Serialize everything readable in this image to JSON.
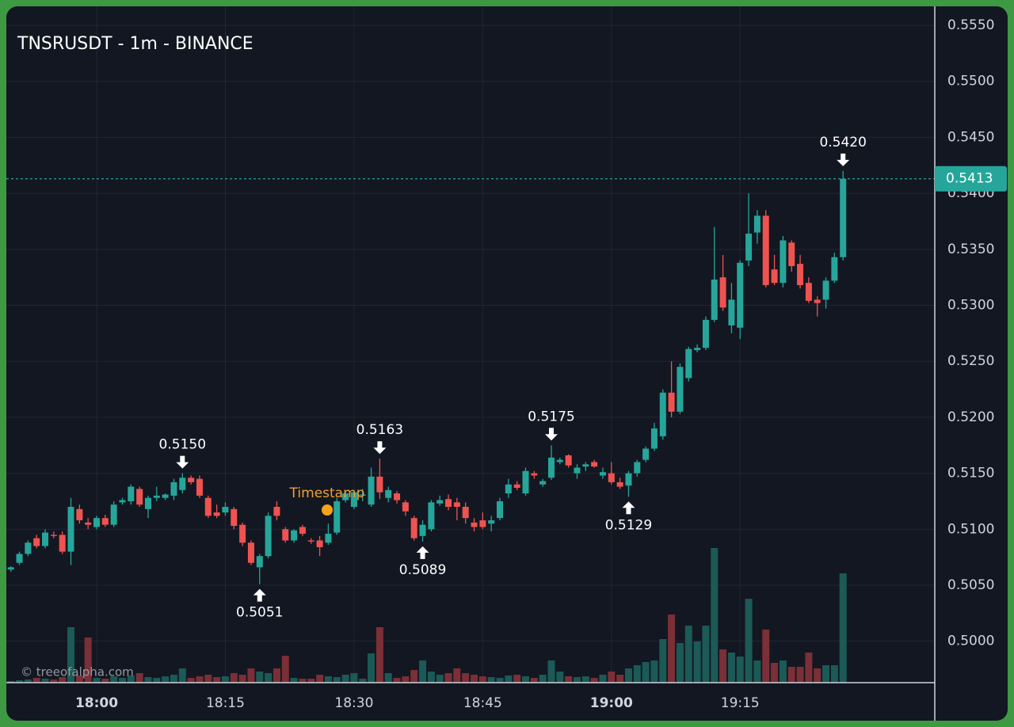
{
  "chart_data": {
    "type": "candlestick",
    "title": "TNSRUSDT - 1m - BINANCE",
    "watermark": "© treeofalpha.com",
    "event_label": "Timestamp",
    "categories": [
      null,
      null,
      null,
      null,
      null,
      null,
      null,
      null,
      null,
      null,
      "18:00",
      null,
      null,
      null,
      null,
      null,
      null,
      null,
      null,
      null,
      null,
      null,
      null,
      null,
      null,
      "18:15",
      null,
      null,
      null,
      null,
      null,
      null,
      null,
      null,
      null,
      null,
      null,
      null,
      null,
      null,
      "18:30",
      null,
      null,
      null,
      null,
      null,
      null,
      null,
      null,
      null,
      null,
      null,
      null,
      null,
      null,
      "18:45",
      null,
      null,
      null,
      null,
      null,
      null,
      null,
      null,
      null,
      null,
      null,
      null,
      null,
      null,
      "19:00",
      null,
      null,
      null,
      null,
      null,
      null,
      null,
      null,
      null,
      null,
      null,
      null,
      null,
      null,
      "19:15",
      null,
      null,
      null,
      null,
      null,
      null,
      null,
      null,
      null,
      null,
      null,
      null
    ],
    "open": [
      0.5064,
      0.507,
      0.5078,
      0.5092,
      0.5085,
      0.5095,
      0.5095,
      0.508,
      0.5118,
      0.5106,
      0.5102,
      0.511,
      0.5104,
      0.5124,
      0.5125,
      0.5136,
      0.5118,
      0.5128,
      0.5128,
      0.513,
      0.5135,
      0.5146,
      0.5145,
      0.5128,
      0.5115,
      0.5115,
      0.5118,
      0.5104,
      0.5088,
      0.5066,
      0.5076,
      0.512,
      0.51,
      0.509,
      0.5102,
      0.509,
      0.509,
      0.5088,
      0.5097,
      0.5126,
      0.512,
      0.513,
      0.5122,
      0.5147,
      0.5128,
      0.5132,
      0.5124,
      0.511,
      0.5094,
      0.51,
      0.5123,
      0.5127,
      0.5124,
      0.512,
      0.5106,
      0.5108,
      0.5105,
      0.511,
      0.5132,
      0.514,
      0.5132,
      0.515,
      0.514,
      0.5146,
      0.516,
      0.5166,
      0.515,
      0.5156,
      0.516,
      0.5148,
      0.515,
      0.5142,
      0.5139,
      0.515,
      0.5162,
      0.5172,
      0.5183,
      0.5222,
      0.5205,
      0.5235,
      0.526,
      0.5262,
      0.5287,
      0.5325,
      0.5282,
      0.528,
      0.534,
      0.5365,
      0.538,
      0.5332,
      0.532,
      0.5356,
      0.5337,
      0.532,
      0.5305,
      0.5305,
      0.5322,
      0.5343
    ],
    "high": [
      0.5067,
      0.508,
      0.509,
      0.5095,
      0.51,
      0.5098,
      0.5098,
      0.5128,
      0.5122,
      0.511,
      0.5112,
      0.5113,
      0.5125,
      0.5128,
      0.514,
      0.5138,
      0.513,
      0.5138,
      0.5132,
      0.5145,
      0.515,
      0.5148,
      0.5148,
      0.513,
      0.5122,
      0.5124,
      0.512,
      0.5106,
      0.509,
      0.5078,
      0.5115,
      0.5125,
      0.5102,
      0.51,
      0.5104,
      0.5092,
      0.5094,
      0.5105,
      0.5128,
      0.5134,
      0.5135,
      0.5136,
      0.5155,
      0.5163,
      0.5138,
      0.5134,
      0.5126,
      0.5112,
      0.5108,
      0.5126,
      0.513,
      0.5131,
      0.5128,
      0.5124,
      0.511,
      0.5115,
      0.5112,
      0.5128,
      0.5145,
      0.5143,
      0.5155,
      0.5152,
      0.5145,
      0.5175,
      0.5164,
      0.5167,
      0.5158,
      0.516,
      0.5162,
      0.5155,
      0.516,
      0.5146,
      0.5152,
      0.5162,
      0.5174,
      0.5195,
      0.5225,
      0.525,
      0.5248,
      0.5263,
      0.5265,
      0.529,
      0.537,
      0.5345,
      0.532,
      0.534,
      0.54,
      0.5385,
      0.5385,
      0.5345,
      0.5362,
      0.5358,
      0.5345,
      0.5325,
      0.5308,
      0.5325,
      0.5347,
      0.542
    ],
    "low": [
      0.5062,
      0.5068,
      0.5076,
      0.5083,
      0.5083,
      0.5092,
      0.5078,
      0.5068,
      0.5105,
      0.51,
      0.51,
      0.5102,
      0.5102,
      0.5122,
      0.5122,
      0.512,
      0.511,
      0.5125,
      0.5126,
      0.5126,
      0.5132,
      0.514,
      0.5128,
      0.511,
      0.511,
      0.5112,
      0.51,
      0.5085,
      0.5068,
      0.5051,
      0.5074,
      0.5108,
      0.5088,
      0.5088,
      0.5094,
      0.5087,
      0.5076,
      0.5086,
      0.5095,
      0.5124,
      0.5118,
      0.5125,
      0.512,
      0.5127,
      0.5124,
      0.5123,
      0.5112,
      0.509,
      0.5089,
      0.5098,
      0.5121,
      0.5117,
      0.5108,
      0.5105,
      0.5098,
      0.51,
      0.5098,
      0.5108,
      0.5128,
      0.5135,
      0.513,
      0.5145,
      0.5138,
      0.5144,
      0.5158,
      0.5155,
      0.5145,
      0.5152,
      0.5155,
      0.5145,
      0.514,
      0.5136,
      0.5129,
      0.5147,
      0.516,
      0.517,
      0.518,
      0.52,
      0.5203,
      0.5232,
      0.5258,
      0.526,
      0.5285,
      0.5295,
      0.5275,
      0.527,
      0.5335,
      0.5355,
      0.5316,
      0.5318,
      0.5316,
      0.533,
      0.5315,
      0.5302,
      0.529,
      0.5297,
      0.532,
      0.534
    ],
    "close": [
      0.5066,
      0.5078,
      0.5088,
      0.5085,
      0.5097,
      0.5094,
      0.508,
      0.512,
      0.5108,
      0.5104,
      0.511,
      0.5104,
      0.5122,
      0.5126,
      0.5138,
      0.5122,
      0.5128,
      0.513,
      0.5131,
      0.5142,
      0.5146,
      0.5142,
      0.513,
      0.5112,
      0.5112,
      0.512,
      0.5103,
      0.5088,
      0.507,
      0.5076,
      0.5112,
      0.5112,
      0.509,
      0.5099,
      0.5096,
      0.5089,
      0.5084,
      0.5096,
      0.5125,
      0.5132,
      0.5133,
      0.5131,
      0.5147,
      0.5133,
      0.5135,
      0.5126,
      0.5116,
      0.5092,
      0.5104,
      0.5124,
      0.5126,
      0.512,
      0.512,
      0.511,
      0.5102,
      0.5102,
      0.5108,
      0.5125,
      0.514,
      0.5137,
      0.5152,
      0.5148,
      0.5143,
      0.5164,
      0.5162,
      0.5157,
      0.5155,
      0.5158,
      0.5156,
      0.5151,
      0.5142,
      0.5138,
      0.515,
      0.516,
      0.5172,
      0.519,
      0.5222,
      0.5205,
      0.5245,
      0.5261,
      0.5262,
      0.5287,
      0.5323,
      0.5298,
      0.5305,
      0.5338,
      0.5364,
      0.538,
      0.5318,
      0.532,
      0.5358,
      0.5335,
      0.5318,
      0.5304,
      0.5302,
      0.5322,
      0.5343,
      0.5413
    ],
    "volume": [
      2,
      3,
      4,
      6,
      5,
      4,
      7,
      70,
      9,
      57,
      6,
      5,
      8,
      6,
      9,
      12,
      7,
      6,
      8,
      10,
      18,
      6,
      8,
      10,
      7,
      8,
      12,
      10,
      18,
      14,
      12,
      18,
      34,
      6,
      5,
      5,
      10,
      8,
      7,
      10,
      12,
      5,
      37,
      70,
      12,
      6,
      8,
      16,
      28,
      14,
      10,
      12,
      18,
      12,
      10,
      8,
      7,
      6,
      9,
      10,
      8,
      6,
      10,
      28,
      14,
      8,
      7,
      8,
      6,
      10,
      14,
      10,
      18,
      22,
      26,
      28,
      55,
      86,
      50,
      72,
      52,
      72,
      170,
      42,
      38,
      33,
      106,
      28,
      67,
      25,
      28,
      20,
      20,
      38,
      18,
      22,
      22,
      138
    ],
    "ylim": [
      0.4963,
      0.5567
    ],
    "yticks": [
      {
        "value": 0.5,
        "label": "0.5000"
      },
      {
        "value": 0.505,
        "label": "0.5050"
      },
      {
        "value": 0.51,
        "label": "0.5100"
      },
      {
        "value": 0.515,
        "label": "0.5150"
      },
      {
        "value": 0.52,
        "label": "0.5200"
      },
      {
        "value": 0.525,
        "label": "0.5250"
      },
      {
        "value": 0.53,
        "label": "0.5300"
      },
      {
        "value": 0.535,
        "label": "0.5350"
      },
      {
        "value": 0.54,
        "label": "0.5400"
      },
      {
        "value": 0.545,
        "label": "0.5450"
      },
      {
        "value": 0.55,
        "label": "0.5500"
      },
      {
        "value": 0.555,
        "label": "0.5550"
      }
    ],
    "last_price": {
      "value": 0.5413,
      "label": "0.5413"
    },
    "annotations": [
      {
        "value": 0.515,
        "label": "0.5150"
      },
      {
        "value": 0.5051,
        "label": "0.5051"
      },
      {
        "value": 0.5163,
        "label": "0.5163"
      },
      {
        "value": 0.5089,
        "label": "0.5089"
      },
      {
        "value": 0.5175,
        "label": "0.5175"
      },
      {
        "value": 0.5129,
        "label": "0.5129"
      },
      {
        "value": 0.542,
        "label": "0.5420"
      }
    ],
    "up_color": "#26a69a",
    "down_color": "#ef5350",
    "up_volume_color": "#1b5a56",
    "down_volume_color": "#7b2f36",
    "grid": true
  }
}
